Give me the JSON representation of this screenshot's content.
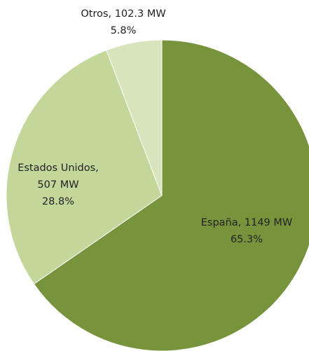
{
  "chart_data": {
    "type": "pie",
    "categories": [
      "España, 1149 MW",
      "Estados Unidos, 507 MW",
      "Otros, 102.3 MW"
    ],
    "values": [
      65.3,
      28.8,
      5.8
    ],
    "value_labels": [
      "65.3%",
      "28.8%",
      "5.8%"
    ],
    "colors": [
      "#77933c",
      "#c4d79b",
      "#d8e4bc"
    ]
  }
}
